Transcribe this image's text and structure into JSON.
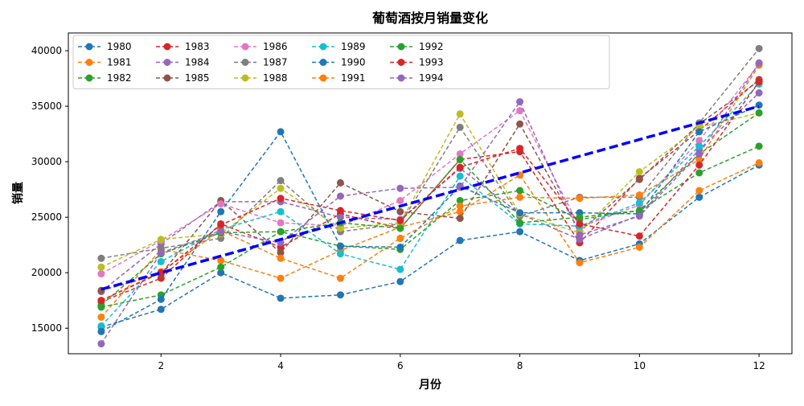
{
  "chart_data": {
    "type": "line",
    "title": "葡萄酒按月销量变化",
    "xlabel": "月份",
    "ylabel": "销量",
    "xlim": [
      0.45,
      12.55
    ],
    "ylim": [
      12700,
      41600
    ],
    "x_ticks": [
      2,
      4,
      6,
      8,
      10,
      12
    ],
    "y_ticks": [
      15000,
      20000,
      25000,
      30000,
      35000,
      40000
    ],
    "grid": false,
    "legend_position": "top-left",
    "legend_columns": 7,
    "x": [
      1,
      2,
      3,
      4,
      5,
      6,
      7,
      8,
      9,
      10,
      11,
      12
    ],
    "series": [
      {
        "name": "1980",
        "color": "#1f77b4",
        "values": [
          15100,
          16700,
          20000,
          17700,
          18000,
          19200,
          22900,
          23700,
          21100,
          22600,
          26800,
          29700
        ]
      },
      {
        "name": "1981",
        "color": "#ff7f0e",
        "values": [
          16000,
          22100,
          21100,
          19500,
          22000,
          24100,
          25500,
          28800,
          20900,
          22300,
          27400,
          29900
        ]
      },
      {
        "name": "1982",
        "color": "#2ca02c",
        "values": [
          16900,
          18000,
          20500,
          23700,
          22400,
          22100,
          26500,
          27400,
          24800,
          25600,
          29000,
          31400
        ]
      },
      {
        "name": "1983",
        "color": "#d62728",
        "values": [
          17400,
          19500,
          24400,
          22300,
          25300,
          24000,
          30200,
          30900,
          22700,
          28500,
          32800,
          37400
        ]
      },
      {
        "name": "1984",
        "color": "#9467bd",
        "values": [
          18300,
          22600,
          26400,
          26400,
          25000,
          24800,
          29400,
          25300,
          23000,
          25200,
          31100,
          36200
        ]
      },
      {
        "name": "1985",
        "color": "#8c564b",
        "values": [
          18400,
          19900,
          26500,
          21800,
          28100,
          25500,
          24900,
          33400,
          23700,
          28400,
          33400,
          37300
        ]
      },
      {
        "name": "1986",
        "color": "#e377c2",
        "values": [
          19900,
          22900,
          26200,
          24500,
          24200,
          26500,
          30700,
          34600,
          24100,
          26100,
          31900,
          38800
        ]
      },
      {
        "name": "1987",
        "color": "#7f7f7f",
        "values": [
          21300,
          22200,
          23100,
          28300,
          23700,
          24400,
          33100,
          25100,
          26800,
          26800,
          33500,
          40200
        ]
      },
      {
        "name": "1988",
        "color": "#bcbd22",
        "values": [
          20500,
          23000,
          23500,
          27600,
          24000,
          24500,
          34300,
          25300,
          23600,
          29100,
          33100,
          34400
        ]
      },
      {
        "name": "1989",
        "color": "#17becf",
        "values": [
          15200,
          21000,
          23900,
          25500,
          21700,
          20300,
          28700,
          24400,
          24200,
          26300,
          31400,
          37000
        ]
      },
      {
        "name": "1990",
        "color": "#1f77b4",
        "values": [
          14700,
          17600,
          25500,
          32700,
          22400,
          22300,
          27800,
          25400,
          25400,
          25300,
          32700,
          35100
        ]
      },
      {
        "name": "1991",
        "color": "#ff7f0e",
        "values": [
          17500,
          20100,
          23800,
          21300,
          19500,
          23100,
          26000,
          26800,
          26700,
          27000,
          30200,
          38700
        ]
      },
      {
        "name": "1992",
        "color": "#2ca02c",
        "values": [
          17100,
          21700,
          23600,
          23700,
          24500,
          24000,
          30200,
          24500,
          25000,
          25600,
          30700,
          34400
        ]
      },
      {
        "name": "1993",
        "color": "#d62728",
        "values": [
          17500,
          20000,
          24300,
          26700,
          25600,
          24700,
          29500,
          31200,
          24400,
          23300,
          29700,
          37200
        ]
      },
      {
        "name": "1994",
        "color": "#9467bd",
        "values": [
          13600,
          21800,
          23700,
          22700,
          26900,
          27600,
          27700,
          35400,
          23400,
          25100,
          30700,
          38900
        ]
      }
    ],
    "trend_line": {
      "color": "#0000ff",
      "points": [
        [
          1,
          18500
        ],
        [
          12,
          35000
        ]
      ]
    }
  }
}
